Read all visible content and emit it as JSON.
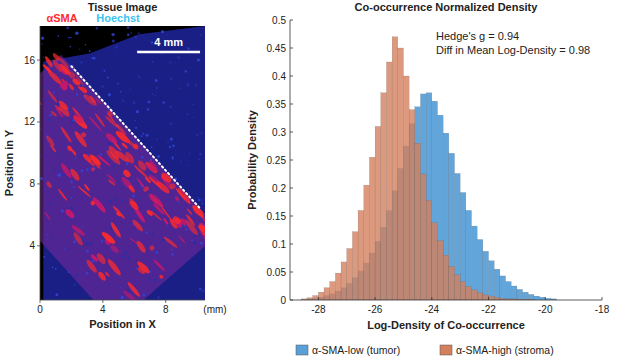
{
  "chart_data": [
    {
      "type": "image",
      "title": "Tissue Image",
      "x_label": "Position in X",
      "y_label": "Position in Y",
      "x_unit_label": "(mm)",
      "channels": [
        {
          "name": "αSMA",
          "color": "#ff2a2a"
        },
        {
          "name": "Hoechst",
          "color": "#3cc4f0"
        }
      ],
      "scale_bar": {
        "label": "4 mm",
        "length": 4
      },
      "boundary_line": {
        "x": [
          2,
          10.2
        ],
        "y": [
          15.6,
          6.4
        ]
      },
      "xlim": [
        0,
        10.5
      ],
      "ylim": [
        0.5,
        18.2
      ],
      "xticks": [
        0,
        4,
        8
      ],
      "yticks": [
        4,
        8,
        12,
        16
      ]
    },
    {
      "type": "histogram",
      "title": "Co-occurrence Normalized Density",
      "x_label": "Log-Density of Co-occurrence",
      "y_label": "Probability Density",
      "annotations": [
        "Hedge's g = 0.94",
        "Diff in Mean Log-Density = 0.98"
      ],
      "bins": [
        -28.6,
        -28.4,
        -28.2,
        -28,
        -27.8,
        -27.6,
        -27.4,
        -27.2,
        -27,
        -26.8,
        -26.6,
        -26.4,
        -26.2,
        -26,
        -25.8,
        -25.6,
        -25.4,
        -25.2,
        -25,
        -24.8,
        -24.6,
        -24.4,
        -24.2,
        -24,
        -23.8,
        -23.6,
        -23.4,
        -23.2,
        -23,
        -22.8,
        -22.6,
        -22.4,
        -22.2,
        -22,
        -21.8,
        -21.6,
        -21.4,
        -21.2,
        -21,
        -20.8,
        -20.6,
        -20.4,
        -20.2,
        -20,
        -19.8,
        -19.6
      ],
      "series": [
        {
          "name": "α-SMA-low (tumor)",
          "color": "#5aa0d8",
          "values": [
            0.001,
            0.002,
            0.003,
            0.005,
            0.008,
            0.011,
            0.016,
            0.022,
            0.03,
            0.04,
            0.052,
            0.066,
            0.084,
            0.105,
            0.13,
            0.16,
            0.195,
            0.235,
            0.275,
            0.315,
            0.345,
            0.368,
            0.37,
            0.355,
            0.33,
            0.298,
            0.262,
            0.226,
            0.192,
            0.16,
            0.132,
            0.108,
            0.087,
            0.07,
            0.055,
            0.043,
            0.033,
            0.025,
            0.019,
            0.014,
            0.01,
            0.007,
            0.005,
            0.003,
            0.002
          ]
        },
        {
          "name": "α-SMA-high (stroma)",
          "color": "#d4805c",
          "values": [
            0.002,
            0.004,
            0.008,
            0.014,
            0.022,
            0.033,
            0.048,
            0.068,
            0.092,
            0.122,
            0.16,
            0.205,
            0.255,
            0.31,
            0.37,
            0.425,
            0.47,
            0.45,
            0.4,
            0.34,
            0.28,
            0.225,
            0.178,
            0.138,
            0.106,
            0.08,
            0.06,
            0.045,
            0.033,
            0.024,
            0.018,
            0.013,
            0.009,
            0.007,
            0.005,
            0.003,
            0.002,
            0.002,
            0.001,
            0.001,
            0.001,
            0,
            0,
            0,
            0
          ]
        }
      ],
      "xlim": [
        -29,
        -18
      ],
      "ylim": [
        0,
        0.5
      ],
      "xticks": [
        -28,
        -26,
        -24,
        -22,
        -20,
        -18
      ],
      "yticks": [
        0,
        0.05,
        0.1,
        0.15,
        0.2,
        0.25,
        0.3,
        0.35,
        0.4,
        0.45,
        0.5
      ],
      "legend": "bottom"
    }
  ]
}
